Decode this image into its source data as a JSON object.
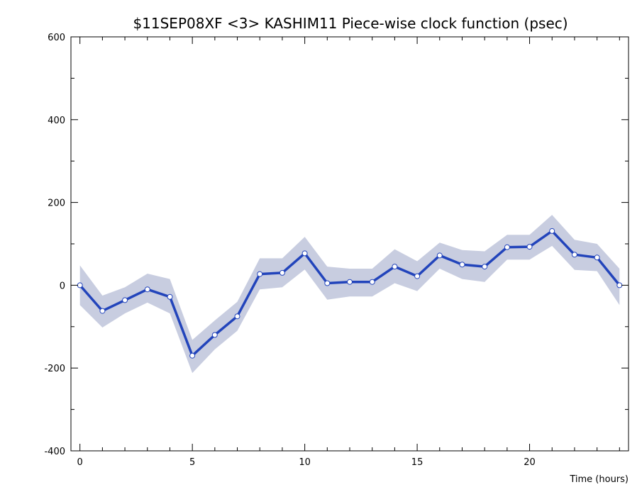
{
  "chart_data": {
    "type": "line",
    "title": "$11SEP08XF <3>  KASHIM11  Piece-wise clock function (psec)",
    "xlabel": "Time (hours)",
    "ylabel": "",
    "xlim": [
      -0.4,
      24.4
    ],
    "ylim": [
      -400,
      600
    ],
    "x_ticks": [
      0,
      5,
      10,
      15,
      20
    ],
    "y_ticks": [
      -400,
      -200,
      0,
      200,
      400,
      600
    ],
    "x_minor_step": 1,
    "y_minor_step": 100,
    "grid": false,
    "colors": {
      "line": "#2244bb",
      "band": "#c8cde0",
      "marker_fill": "#ffffff"
    },
    "series": [
      {
        "x": [
          0,
          1,
          2,
          3,
          4,
          5,
          6,
          7,
          8,
          9,
          10,
          11,
          12,
          13,
          14,
          15,
          16,
          17,
          18,
          19,
          20,
          21,
          22,
          23,
          24
        ],
        "values": [
          0,
          -62,
          -36,
          -10,
          -28,
          -170,
          -120,
          -75,
          27,
          30,
          77,
          5,
          8,
          8,
          45,
          22,
          72,
          50,
          45,
          92,
          93,
          131,
          74,
          67,
          0
        ],
        "band_upper": [
          48,
          -25,
          -5,
          28,
          15,
          -132,
          -85,
          -40,
          65,
          65,
          117,
          45,
          40,
          40,
          87,
          58,
          103,
          85,
          82,
          122,
          122,
          170,
          110,
          100,
          40
        ],
        "band_lower": [
          -48,
          -102,
          -68,
          -42,
          -68,
          -212,
          -155,
          -110,
          -10,
          -5,
          38,
          -35,
          -27,
          -27,
          5,
          -14,
          40,
          15,
          8,
          62,
          62,
          95,
          37,
          34,
          -48
        ]
      }
    ]
  }
}
